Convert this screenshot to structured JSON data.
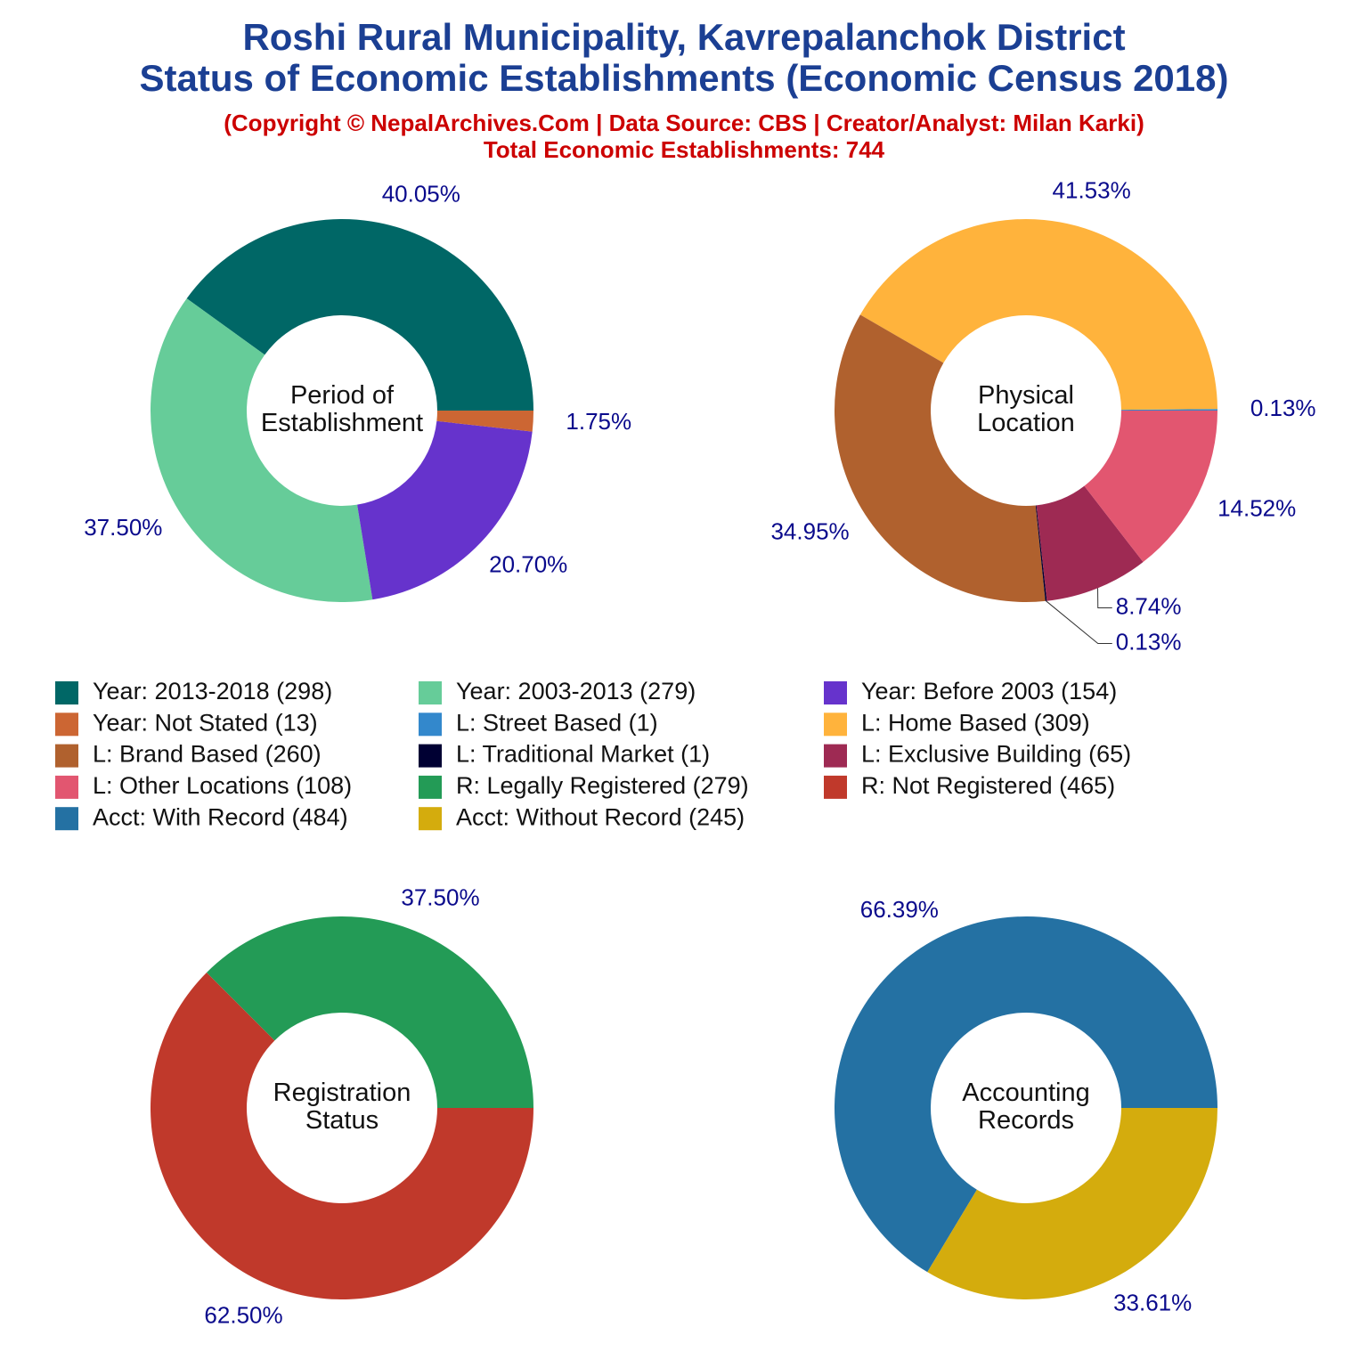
{
  "title": [
    "Roshi Rural Municipality, Kavrepalanchok District",
    "Status of Economic Establishments (Economic Census 2018)"
  ],
  "subtitle": [
    "(Copyright © NepalArchives.Com | Data Source: CBS | Creator/Analyst: Milan Karki)",
    "Total Economic Establishments: 744"
  ],
  "chart_data": [
    {
      "type": "donut",
      "center_label": [
        "Period of",
        "Establishment"
      ],
      "categories": [
        "Year: 2013-2018 (298)",
        "Year: 2003-2013 (279)",
        "Year: Before 2003 (154)",
        "Year: Not Stated (13)"
      ],
      "values": [
        40.05,
        37.5,
        20.7,
        1.75
      ],
      "value_labels": [
        "40.05%",
        "37.50%",
        "20.70%",
        "1.75%"
      ],
      "colors": [
        "#006766",
        "#66cc99",
        "#6633cc",
        "#cc6633"
      ]
    },
    {
      "type": "donut",
      "center_label": [
        "Physical",
        "Location"
      ],
      "categories": [
        "L: Street Based (1)",
        "L: Home Based (309)",
        "L: Brand Based (260)",
        "L: Traditional Market (1)",
        "L: Exclusive Building (65)",
        "L: Other Locations (108)"
      ],
      "values": [
        0.13,
        41.53,
        34.95,
        0.13,
        8.74,
        14.52
      ],
      "value_labels": [
        "0.13%",
        "41.53%",
        "34.95%",
        "0.13%",
        "8.74%",
        "14.52%"
      ],
      "colors": [
        "#3388cc",
        "#ffb33c",
        "#b0612e",
        "#000033",
        "#9e2a53",
        "#e25670"
      ]
    },
    {
      "type": "donut",
      "center_label": [
        "Registration",
        "Status"
      ],
      "categories": [
        "R: Legally Registered (279)",
        "R: Not Registered (465)"
      ],
      "values": [
        37.5,
        62.5
      ],
      "value_labels": [
        "37.50%",
        "62.50%"
      ],
      "colors": [
        "#239b56",
        "#c0392b"
      ]
    },
    {
      "type": "donut",
      "center_label": [
        "Accounting",
        "Records"
      ],
      "categories": [
        "Acct: With Record (484)",
        "Acct: Without Record (245)"
      ],
      "values": [
        66.39,
        33.61
      ],
      "value_labels": [
        "66.39%",
        "33.61%"
      ],
      "colors": [
        "#2471a3",
        "#d4ac0d"
      ]
    }
  ]
}
